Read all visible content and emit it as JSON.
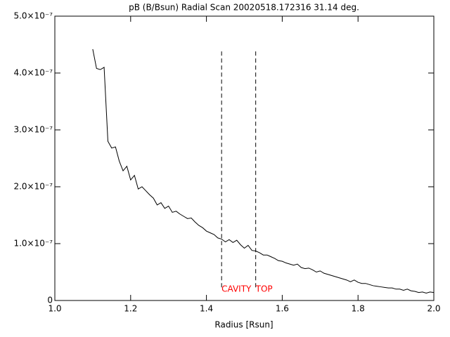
{
  "chart_data": {
    "type": "line",
    "title": "pB (B/Bsun) Radial Scan 20020518.172316 31.14 deg.",
    "x_label": "Radius [Rsun]",
    "color": "#000000",
    "x": [
      1.1,
      1.11,
      1.12,
      1.13,
      1.14,
      1.15,
      1.16,
      1.17,
      1.18,
      1.19,
      1.2,
      1.21,
      1.22,
      1.23,
      1.24,
      1.25,
      1.26,
      1.27,
      1.28,
      1.29,
      1.3,
      1.31,
      1.32,
      1.33,
      1.34,
      1.35,
      1.36,
      1.37,
      1.38,
      1.39,
      1.4,
      1.41,
      1.42,
      1.43,
      1.44,
      1.45,
      1.46,
      1.47,
      1.48,
      1.49,
      1.5,
      1.51,
      1.52,
      1.53,
      1.54,
      1.55,
      1.56,
      1.57,
      1.58,
      1.59,
      1.6,
      1.61,
      1.62,
      1.63,
      1.64,
      1.65,
      1.66,
      1.67,
      1.68,
      1.69,
      1.7,
      1.71,
      1.72,
      1.73,
      1.74,
      1.75,
      1.76,
      1.77,
      1.78,
      1.79,
      1.8,
      1.81,
      1.82,
      1.83,
      1.84,
      1.85,
      1.86,
      1.87,
      1.88,
      1.89,
      1.9,
      1.91,
      1.92,
      1.93,
      1.94,
      1.95,
      1.96,
      1.97,
      1.98,
      1.99,
      2.0
    ],
    "values": [
      4.42e-07,
      4.08e-07,
      4.06e-07,
      4.1e-07,
      2.8e-07,
      2.68e-07,
      2.7e-07,
      2.45e-07,
      2.28e-07,
      2.36e-07,
      2.12e-07,
      2.2e-07,
      1.96e-07,
      2e-07,
      1.93e-07,
      1.86e-07,
      1.8e-07,
      1.68e-07,
      1.72e-07,
      1.62e-07,
      1.66e-07,
      1.55e-07,
      1.57e-07,
      1.52e-07,
      1.48e-07,
      1.44e-07,
      1.45e-07,
      1.38e-07,
      1.32e-07,
      1.28e-07,
      1.22e-07,
      1.19e-07,
      1.16e-07,
      1.1e-07,
      1.08e-07,
      1.03e-07,
      1.07e-07,
      1.02e-07,
      1.06e-07,
      9.8e-08,
      9.2e-08,
      9.7e-08,
      8.8e-08,
      8.7e-08,
      8.4e-08,
      8e-08,
      8e-08,
      7.7e-08,
      7.4e-08,
      7e-08,
      6.9e-08,
      6.6e-08,
      6.4e-08,
      6.2e-08,
      6.4e-08,
      5.8e-08,
      5.6e-08,
      5.7e-08,
      5.4e-08,
      5e-08,
      5.2e-08,
      4.8e-08,
      4.6e-08,
      4.4e-08,
      4.2e-08,
      4e-08,
      3.8e-08,
      3.6e-08,
      3.3e-08,
      3.6e-08,
      3.2e-08,
      3e-08,
      3e-08,
      2.8e-08,
      2.6e-08,
      2.5e-08,
      2.4e-08,
      2.3e-08,
      2.2e-08,
      2.2e-08,
      2e-08,
      2e-08,
      1.8e-08,
      2e-08,
      1.7e-08,
      1.6e-08,
      1.4e-08,
      1.5e-08,
      1.3e-08,
      1.5e-08,
      1.4e-08
    ],
    "xlim": [
      1.0,
      2.0
    ],
    "ylim": [
      0,
      5e-07
    ],
    "xticks": [
      {
        "value": 1.0,
        "label": "1.0"
      },
      1.2,
      1.4,
      1.6,
      1.8,
      {
        "value": 2.0,
        "label": "2.0"
      }
    ],
    "yticks": [
      0,
      {
        "value": 1e-07,
        "label": "1.0×10⁻⁷"
      },
      {
        "value": 2e-07,
        "label": "2.0×10⁻⁷"
      },
      {
        "value": 3e-07,
        "label": "3.0×10⁻⁷"
      },
      {
        "value": 4e-07,
        "label": "4.0×10⁻⁷"
      },
      {
        "value": 5e-07,
        "label": "5.0×10⁻⁷"
      }
    ],
    "markers": [
      {
        "label": "CAVITY",
        "x": 1.44,
        "y_top": 4.38e-07,
        "y_bottom": 2.2e-08,
        "color": "#ff0000"
      },
      {
        "label": "TOP",
        "x": 1.53,
        "y_top": 4.38e-07,
        "y_bottom": 2.2e-08,
        "color": "#ff0000"
      }
    ]
  }
}
